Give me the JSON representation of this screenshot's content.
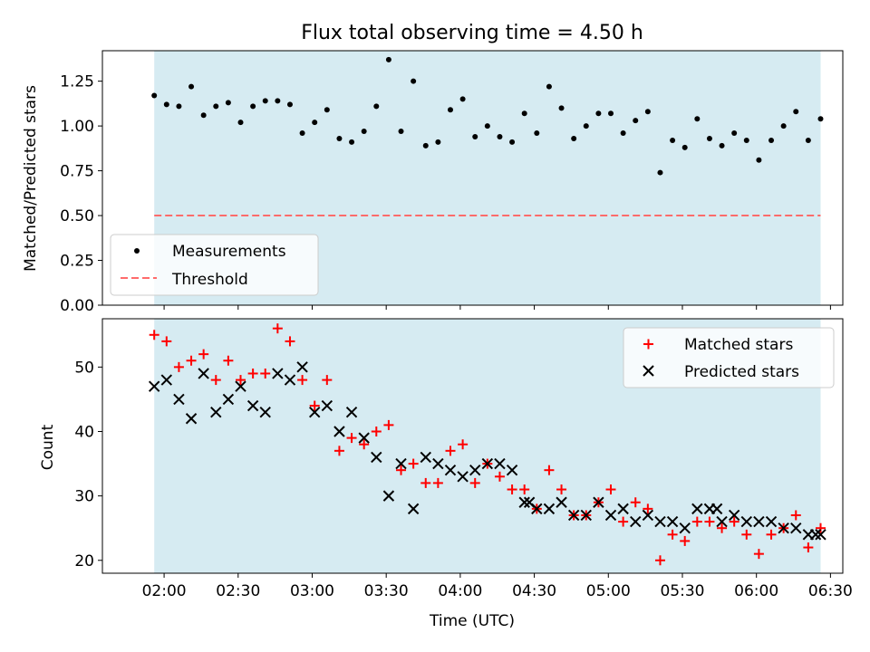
{
  "chart_data": [
    {
      "type": "scatter",
      "title": "Flux total observing time = 4.50 h",
      "xlabel": "",
      "ylabel": "Matched/Predicted stars",
      "xlim_minutes": [
        95,
        395
      ],
      "ylim": [
        0,
        1.42
      ],
      "yticks": [
        0.0,
        0.25,
        0.5,
        0.75,
        1.0,
        1.25
      ],
      "ytick_labels": [
        "0.00",
        "0.25",
        "0.50",
        "0.75",
        "1.00",
        "1.25"
      ],
      "shaded_span_minutes": [
        116,
        386
      ],
      "legend_location": "lower-left",
      "series": [
        {
          "name": "Measurements",
          "marker": "dot",
          "color": "#000000",
          "x": [
            116,
            121,
            126,
            131,
            136,
            141,
            146,
            151,
            156,
            161,
            166,
            171,
            176,
            181,
            186,
            191,
            196,
            201,
            206,
            211,
            216,
            221,
            226,
            231,
            236,
            241,
            246,
            251,
            256,
            261,
            266,
            271,
            276,
            281,
            286,
            291,
            296,
            301,
            306,
            311,
            316,
            321,
            326,
            331,
            336,
            341,
            346,
            351,
            356,
            361,
            366,
            371,
            376,
            381,
            386
          ],
          "y": [
            1.17,
            1.12,
            1.11,
            1.22,
            1.06,
            1.11,
            1.13,
            1.02,
            1.11,
            1.14,
            1.14,
            1.12,
            0.96,
            1.02,
            1.09,
            0.93,
            0.91,
            0.97,
            1.11,
            1.37,
            0.97,
            1.25,
            0.89,
            0.91,
            1.09,
            1.15,
            0.94,
            1.0,
            0.94,
            0.91,
            1.07,
            0.96,
            1.22,
            1.1,
            0.93,
            1.0,
            1.07,
            1.07,
            0.96,
            1.03,
            1.08,
            0.74,
            0.92,
            0.88,
            1.04,
            0.93,
            0.89,
            0.96,
            0.92,
            0.81,
            0.92,
            1.0,
            1.08,
            0.92,
            1.04
          ]
        },
        {
          "name": "Threshold",
          "line": "dashed",
          "color": "#ff6b6b",
          "x": [
            116,
            386
          ],
          "y": [
            0.5,
            0.5
          ]
        }
      ]
    },
    {
      "type": "scatter",
      "title": "",
      "xlabel": "Time (UTC)",
      "ylabel": "Count",
      "xlim_minutes": [
        95,
        395
      ],
      "ylim": [
        18,
        57.5
      ],
      "yticks": [
        20,
        30,
        40,
        50
      ],
      "ytick_labels": [
        "20",
        "30",
        "40",
        "50"
      ],
      "xticks_minutes": [
        120,
        150,
        180,
        210,
        240,
        270,
        300,
        330,
        360,
        390
      ],
      "xtick_labels": [
        "02:00",
        "02:30",
        "03:00",
        "03:30",
        "04:00",
        "04:30",
        "05:00",
        "05:30",
        "06:00",
        "06:30"
      ],
      "shaded_span_minutes": [
        116,
        386
      ],
      "legend_location": "upper-right",
      "series": [
        {
          "name": "Matched stars",
          "marker": "plus",
          "color": "#ff0000",
          "x": [
            116,
            121,
            126,
            131,
            136,
            141,
            146,
            151,
            156,
            161,
            166,
            171,
            176,
            181,
            186,
            191,
            196,
            201,
            206,
            211,
            216,
            221,
            226,
            231,
            236,
            241,
            246,
            251,
            256,
            261,
            266,
            271,
            276,
            281,
            286,
            291,
            296,
            301,
            306,
            311,
            316,
            321,
            326,
            331,
            336,
            341,
            346,
            351,
            356,
            361,
            366,
            371,
            376,
            381,
            386
          ],
          "y": [
            55,
            54,
            50,
            51,
            52,
            48,
            51,
            48,
            49,
            49,
            56,
            54,
            48,
            44,
            48,
            37,
            39,
            38,
            40,
            41,
            34,
            35,
            32,
            32,
            37,
            38,
            32,
            35,
            33,
            31,
            31,
            28,
            34,
            31,
            27,
            27,
            29,
            31,
            26,
            29,
            28,
            20,
            24,
            23,
            26,
            26,
            25,
            26,
            24,
            21,
            24,
            25,
            27,
            22,
            25
          ]
        },
        {
          "name": "Predicted stars",
          "marker": "x",
          "color": "#000000",
          "x": [
            116,
            121,
            126,
            131,
            136,
            141,
            146,
            151,
            156,
            161,
            166,
            171,
            176,
            181,
            186,
            191,
            196,
            201,
            206,
            211,
            216,
            221,
            226,
            231,
            236,
            241,
            246,
            251,
            256,
            261,
            266,
            268,
            271,
            276,
            281,
            286,
            291,
            296,
            301,
            306,
            311,
            316,
            321,
            326,
            331,
            336,
            341,
            344,
            346,
            351,
            356,
            361,
            366,
            371,
            376,
            381,
            384,
            386
          ],
          "y": [
            47,
            48,
            45,
            42,
            49,
            43,
            45,
            47,
            44,
            43,
            49,
            48,
            50,
            43,
            44,
            40,
            43,
            39,
            36,
            30,
            35,
            28,
            36,
            35,
            34,
            33,
            34,
            35,
            35,
            34,
            29,
            29,
            28,
            28,
            29,
            27,
            27,
            29,
            27,
            28,
            26,
            27,
            26,
            26,
            25,
            28,
            28,
            28,
            26,
            27,
            26,
            26,
            26,
            25,
            25,
            24,
            24,
            24
          ]
        }
      ]
    }
  ]
}
